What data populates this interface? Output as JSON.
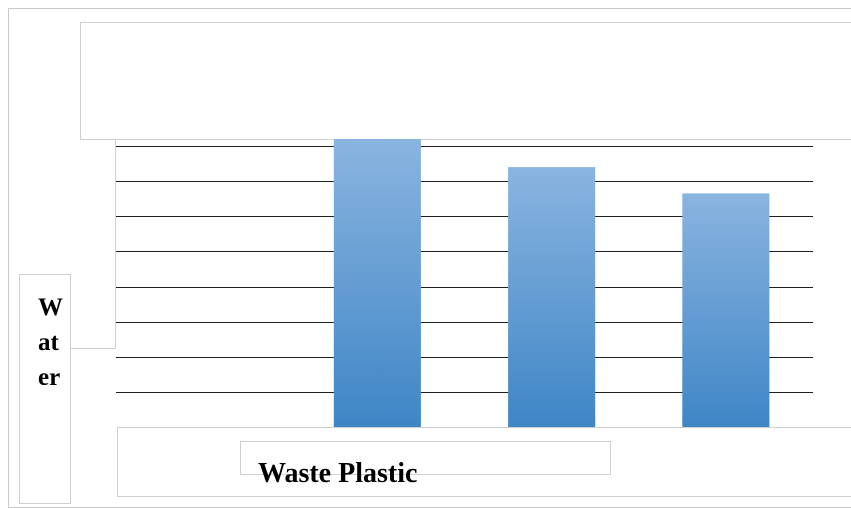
{
  "chart_data": {
    "type": "bar",
    "title": "",
    "xlabel": "Waste Plastic",
    "ylabel": "Water",
    "categories": [
      "",
      "",
      "",
      ""
    ],
    "values": [
      0,
      8.2,
      7.4,
      6.65
    ],
    "ylim": [
      0,
      8
    ],
    "grid": true,
    "gridlines": 8,
    "legend": "none",
    "bar_color_top": "#8ab4e0",
    "bar_color_bottom": "#3f86c6",
    "gridline_color": "#1f1f1f"
  }
}
